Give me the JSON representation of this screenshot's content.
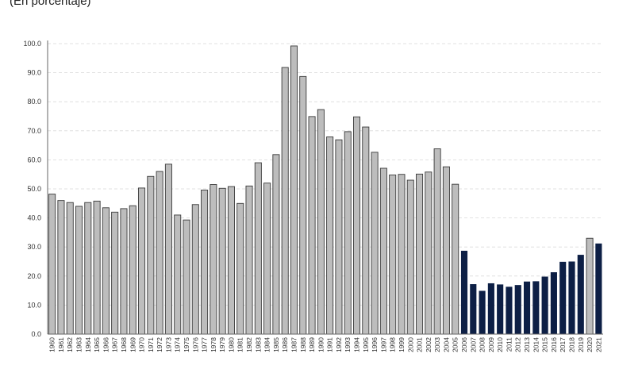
{
  "header": {
    "subtitle": "(En porcentaje)"
  },
  "colors": {
    "gray_bar": "#bdbdbd",
    "bar_stroke": "#3a3a3a",
    "navy_bar": "#0d1f45",
    "grid": "#d9d9d9",
    "axis": "#666666"
  },
  "chart_data": {
    "type": "bar",
    "title": "",
    "xlabel": "",
    "ylabel": "",
    "ylim": [
      0,
      100
    ],
    "yticks": [
      "0.0",
      "10.0",
      "20.0",
      "30.0",
      "40.0",
      "50.0",
      "60.0",
      "70.0",
      "80.0",
      "90.0",
      "100.0"
    ],
    "grid": true,
    "legend": "none",
    "categories": [
      "1960",
      "1961",
      "1962",
      "1963",
      "1964",
      "1965",
      "1966",
      "1967",
      "1968",
      "1969",
      "1970",
      "1971",
      "1972",
      "1973",
      "1974",
      "1975",
      "1976",
      "1977",
      "1978",
      "1979",
      "1980",
      "1981",
      "1982",
      "1983",
      "1984",
      "1985",
      "1986",
      "1987",
      "1988",
      "1989",
      "1990",
      "1991",
      "1992",
      "1993",
      "1994",
      "1995",
      "1996",
      "1997",
      "1998",
      "1999",
      "2000",
      "2001",
      "2002",
      "2003",
      "2004",
      "2005",
      "2006",
      "2007",
      "2008",
      "2009",
      "2010",
      "2011",
      "2012",
      "2013",
      "2014",
      "2015",
      "2016",
      "2017",
      "2018",
      "2019",
      "2020",
      "2021"
    ],
    "values": [
      48.2,
      46.0,
      45.3,
      44.0,
      45.3,
      45.8,
      43.5,
      42.0,
      43.2,
      44.2,
      50.3,
      54.3,
      56.0,
      58.5,
      41.0,
      39.3,
      44.6,
      49.6,
      51.5,
      50.2,
      50.8,
      45.0,
      51.0,
      59.0,
      52.0,
      61.8,
      91.8,
      99.2,
      88.7,
      74.9,
      77.3,
      67.9,
      66.9,
      69.7,
      74.8,
      71.3,
      62.6,
      57.1,
      54.8,
      55.0,
      53.0,
      55.1,
      55.8,
      63.8,
      57.6,
      51.6,
      28.7,
      17.2,
      14.9,
      17.5,
      17.1,
      16.3,
      16.9,
      18.1,
      18.2,
      19.8,
      21.3,
      24.9,
      25.0,
      27.3,
      33.0,
      31.2
    ],
    "highlight_categories": [
      "2006",
      "2007",
      "2008",
      "2009",
      "2010",
      "2011",
      "2012",
      "2013",
      "2014",
      "2015",
      "2016",
      "2017",
      "2018",
      "2019",
      "2021"
    ]
  }
}
